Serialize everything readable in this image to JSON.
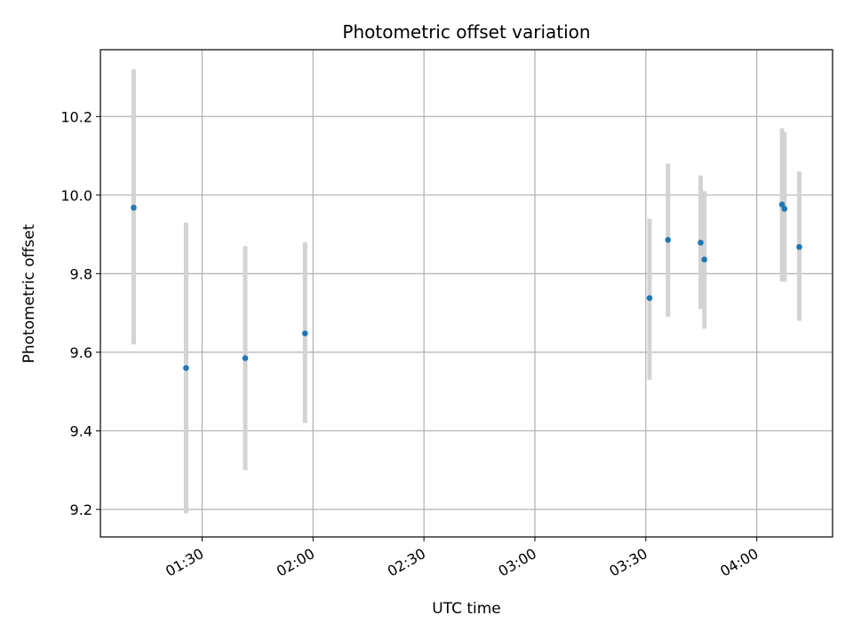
{
  "chart_data": {
    "type": "scatter",
    "title": "Photometric offset variation",
    "xlabel": "UTC time",
    "ylabel": "Photometric offset",
    "x_tick_labels": [
      "01:30",
      "02:00",
      "02:30",
      "03:00",
      "03:30",
      "04:00"
    ],
    "y_tick_labels": [
      "9.2",
      "9.4",
      "9.6",
      "9.8",
      "10.0",
      "10.2"
    ],
    "x_ticks": [
      "01:30",
      "02:00",
      "02:30",
      "03:00",
      "03:30",
      "04:00"
    ],
    "y_ticks": [
      9.2,
      9.4,
      9.6,
      9.8,
      10.0,
      10.2
    ],
    "xlim": [
      "01:02:30",
      "04:20:30"
    ],
    "ylim": [
      9.13,
      10.37
    ],
    "grid": true,
    "error_bars": true,
    "colors": {
      "points": "#1f77b4",
      "error_bars": "#d3d3d3",
      "grid": "#b0b0b0",
      "axes": "#000000"
    },
    "points": [
      {
        "x": "01:11:30",
        "y": 9.968,
        "ylo": 9.62,
        "yhi": 10.32
      },
      {
        "x": "01:25:40",
        "y": 9.56,
        "ylo": 9.19,
        "yhi": 9.93
      },
      {
        "x": "01:41:40",
        "y": 9.585,
        "ylo": 9.3,
        "yhi": 9.87
      },
      {
        "x": "01:57:50",
        "y": 9.648,
        "ylo": 9.42,
        "yhi": 9.88
      },
      {
        "x": "03:31:00",
        "y": 9.738,
        "ylo": 9.53,
        "yhi": 9.94
      },
      {
        "x": "03:36:00",
        "y": 9.886,
        "ylo": 9.69,
        "yhi": 10.08
      },
      {
        "x": "03:44:50",
        "y": 9.879,
        "ylo": 9.71,
        "yhi": 10.05
      },
      {
        "x": "03:45:50",
        "y": 9.836,
        "ylo": 9.66,
        "yhi": 10.01
      },
      {
        "x": "04:06:50",
        "y": 9.976,
        "ylo": 9.78,
        "yhi": 10.17
      },
      {
        "x": "04:07:30",
        "y": 9.965,
        "ylo": 9.78,
        "yhi": 10.16
      },
      {
        "x": "04:11:30",
        "y": 9.868,
        "ylo": 9.68,
        "yhi": 10.06
      }
    ]
  }
}
